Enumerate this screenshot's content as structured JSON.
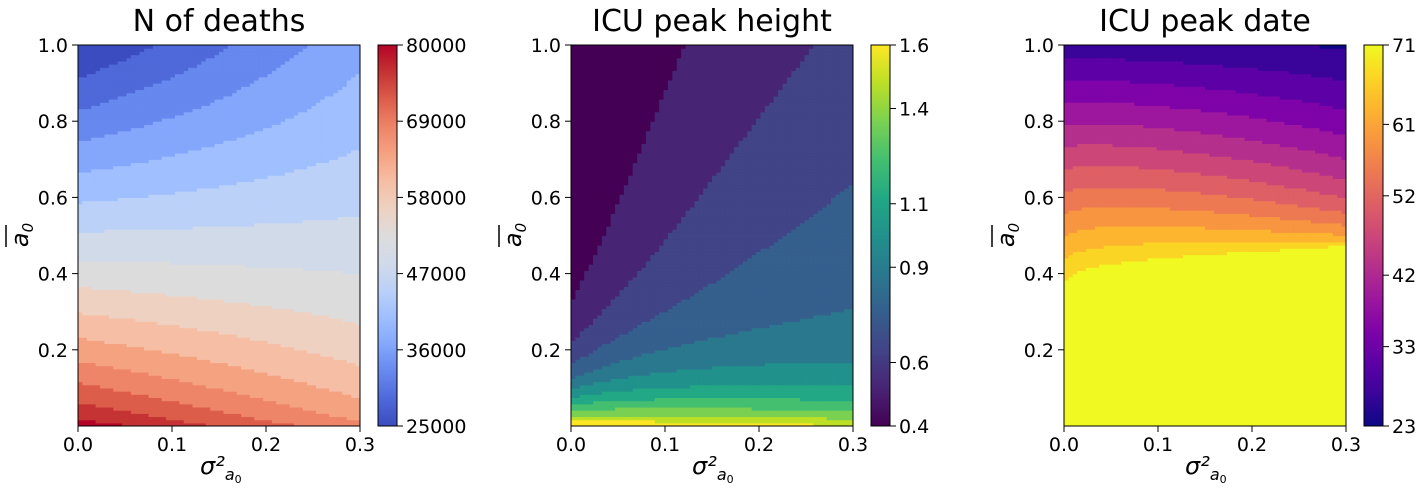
{
  "chart_data": [
    {
      "type": "heatmap",
      "title": "N of deaths",
      "xlabel": "σ²",
      "xlabel_sub": "a",
      "xlabel_subsub": "0",
      "ylabel": "a",
      "ylabel_sub": "0",
      "xlim": [
        0.0,
        0.3
      ],
      "ylim": [
        0.0,
        1.0
      ],
      "xticks": [
        "0.0",
        "0.1",
        "0.2",
        "0.3"
      ],
      "xtick_values": [
        0.0,
        0.1,
        0.2,
        0.3
      ],
      "yticks": [
        "0.2",
        "0.4",
        "0.6",
        "0.8",
        "1.0"
      ],
      "ytick_values": [
        0.2,
        0.4,
        0.6,
        0.8,
        1.0
      ],
      "colormap": "coolwarm",
      "colorbar_range": [
        25000,
        80000
      ],
      "colorbar_ticks": [
        "25000",
        "36000",
        "47000",
        "58000",
        "69000",
        "80000"
      ],
      "colorbar_tick_values": [
        25000,
        36000,
        47000,
        58000,
        69000,
        80000
      ],
      "colors": [
        "#3b4cc0",
        "#4f69d9",
        "#6788ee",
        "#84a7fc",
        "#a0bfff",
        "#bbd1f8",
        "#d1dae9",
        "#dddcdc",
        "#eed1c1",
        "#f6bea4",
        "#f5a281",
        "#ee8468",
        "#dc5d4a",
        "#c53334",
        "#b40426"
      ],
      "level_step": 0.05,
      "grid": false
    },
    {
      "type": "heatmap",
      "title": "ICU peak height",
      "xlabel": "σ²",
      "xlabel_sub": "a",
      "xlabel_subsub": "0",
      "ylabel": "a",
      "ylabel_sub": "0",
      "xlim": [
        0.0,
        0.3
      ],
      "ylim": [
        0.0,
        1.0
      ],
      "xticks": [
        "0.0",
        "0.1",
        "0.2",
        "0.3"
      ],
      "xtick_values": [
        0.0,
        0.1,
        0.2,
        0.3
      ],
      "yticks": [
        "0.2",
        "0.4",
        "0.6",
        "0.8",
        "1.0"
      ],
      "ytick_values": [
        0.2,
        0.4,
        0.6,
        0.8,
        1.0
      ],
      "colormap": "viridis",
      "colorbar_range": [
        0.4,
        1.6
      ],
      "colorbar_ticks": [
        "0.4",
        "0.6",
        "0.9",
        "1.1",
        "1.4",
        "1.6"
      ],
      "colorbar_tick_values": [
        0.4,
        0.6,
        0.9,
        1.1,
        1.4,
        1.6
      ],
      "colors": [
        "#440154",
        "#482475",
        "#414487",
        "#355f8d",
        "#2a788e",
        "#21918c",
        "#22a884",
        "#44bf70",
        "#7ad151",
        "#bddf26",
        "#fde725"
      ],
      "level_step": 0.1,
      "grid": false
    },
    {
      "type": "heatmap",
      "title": "ICU peak date",
      "xlabel": "σ²",
      "xlabel_sub": "a",
      "xlabel_subsub": "0",
      "ylabel": "a",
      "ylabel_sub": "0",
      "xlim": [
        0.0,
        0.3
      ],
      "ylim": [
        0.0,
        1.0
      ],
      "xticks": [
        "0.0",
        "0.1",
        "0.2",
        "0.3"
      ],
      "xtick_values": [
        0.0,
        0.1,
        0.2,
        0.3
      ],
      "yticks": [
        "0.2",
        "0.4",
        "0.6",
        "0.8",
        "1.0"
      ],
      "ytick_values": [
        0.2,
        0.4,
        0.6,
        0.8,
        1.0
      ],
      "colormap": "plasma",
      "colorbar_range": [
        23,
        71
      ],
      "colorbar_ticks": [
        "23",
        "33",
        "42",
        "52",
        "61",
        "71"
      ],
      "colorbar_tick_values": [
        23,
        33,
        42,
        52,
        61,
        71
      ],
      "colors": [
        "#0d0887",
        "#3a049a",
        "#5c01a6",
        "#7e03a8",
        "#9c179e",
        "#b52f8c",
        "#cc4778",
        "#de5f65",
        "#ed7953",
        "#f89540",
        "#fdb42f",
        "#fbd524",
        "#f0f921"
      ],
      "level_step": 0.0769,
      "grid": false
    }
  ]
}
